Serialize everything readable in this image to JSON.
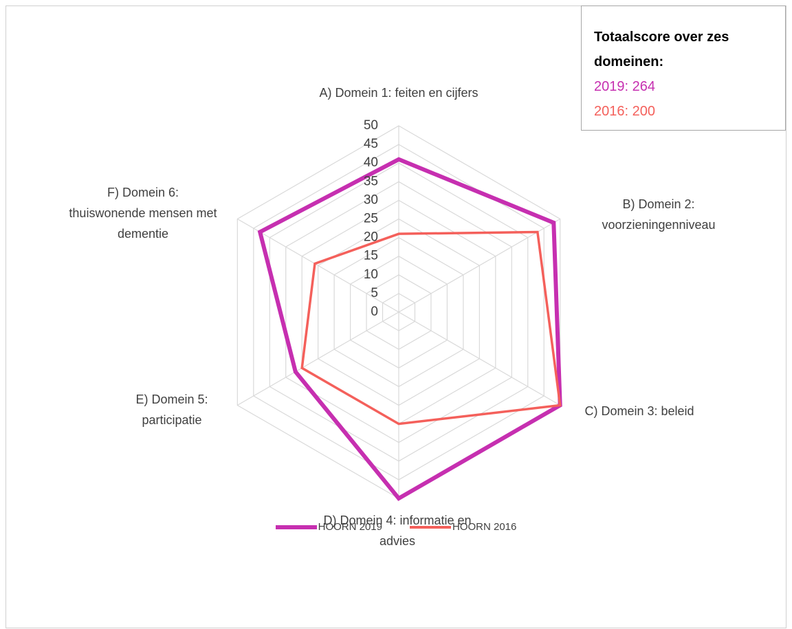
{
  "chart_data": {
    "type": "radar",
    "categories": [
      "A) Domein 1: feiten en cijfers",
      "B) Domein 2: voorzieningenniveau",
      "C) Domein 3: beleid",
      "D) Domein 4: informatie en advies",
      "E) Domein 5: participatie",
      "F) Domein 6: thuiswonende mensen met dementie"
    ],
    "series": [
      {
        "name": "HOORN 2019",
        "color": "#c62fb0",
        "values": [
          41,
          48,
          50,
          50,
          32,
          43
        ]
      },
      {
        "name": "HOORN 2016",
        "color": "#f4605b",
        "values": [
          21,
          43,
          50,
          30,
          30,
          26
        ]
      }
    ],
    "rlim": [
      0,
      50
    ],
    "rticks": [
      0,
      5,
      10,
      15,
      20,
      25,
      30,
      35,
      40,
      45,
      50
    ],
    "grid": true,
    "legend": "bottom",
    "annotation": {
      "title": "Totaalscore over zes domeinen:",
      "lines": [
        {
          "text": "2019: 264",
          "color": "#c62fb0"
        },
        {
          "text": "2016: 200",
          "color": "#f4605b"
        }
      ]
    }
  }
}
